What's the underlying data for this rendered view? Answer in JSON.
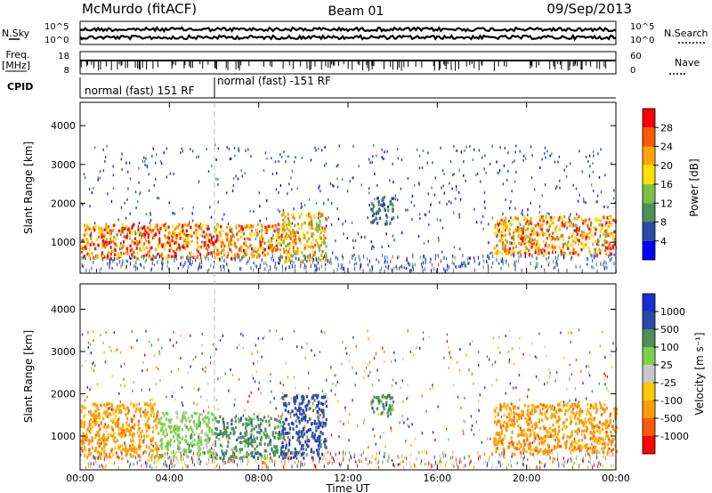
{
  "header": {
    "station": "McMurdo (fitACF)",
    "beam": "Beam 01",
    "date": "09/Sep/2013"
  },
  "left_labels": {
    "nsky": "N.Sky",
    "freq": "Freq.",
    "freq_unit": "[MHz]",
    "cpid": "CPID"
  },
  "right_labels": {
    "nsearch": "N.Search",
    "nave": "Nave"
  },
  "status_panels": {
    "nsky_ticks_left": [
      "10^5",
      "10^0"
    ],
    "nsearch_ticks_right": [
      "10^5",
      "10^0"
    ],
    "freq_ticks_left": [
      "18",
      "8"
    ],
    "nave_ticks_right": [
      "60",
      "0"
    ],
    "cpid_modes": [
      {
        "label": "normal (fast) 151 RF",
        "start_hour": 0,
        "end_hour": 6
      },
      {
        "label": "normal (fast) -151 RF",
        "start_hour": 6,
        "end_hour": 24
      }
    ]
  },
  "x_axis": {
    "label": "Time UT",
    "ticks": [
      "00:00",
      "04:00",
      "08:00",
      "12:00",
      "16:00",
      "20:00",
      "00:00"
    ],
    "range_hours": [
      0,
      24
    ]
  },
  "colors": {
    "power": [
      "#0000ff",
      "#2a4aa6",
      "#4f8f5a",
      "#7bc043",
      "#ffe000",
      "#ffa500",
      "#ff5a00",
      "#ff0000"
    ],
    "velocity": [
      "#ff0000",
      "#ff5a00",
      "#ff9d00",
      "#ffc800",
      "#c8c8c8",
      "#7bd24a",
      "#4f8f5a",
      "#2a4aa6",
      "#1a2fcf"
    ]
  },
  "chart_data": [
    {
      "type": "heatmap",
      "panel": "power",
      "xlabel": "Time UT",
      "ylabel": "Slant Range [km]",
      "xlim": [
        0,
        24
      ],
      "ylim": [
        200,
        4600
      ],
      "y_ticks": [
        "1000",
        "2000",
        "3000",
        "4000"
      ],
      "colorbar_label": "Power [dB]",
      "colorbar_ticks": [
        "4",
        "8",
        "12",
        "16",
        "20",
        "24",
        "28"
      ],
      "colorbar_range": [
        0,
        32
      ],
      "regions": [
        {
          "t_start": 0.0,
          "t_end": 6.0,
          "r_low": 600,
          "r_high": 1500,
          "peak_db": 30
        },
        {
          "t_start": 6.0,
          "t_end": 9.0,
          "r_low": 600,
          "r_high": 1500,
          "peak_db": 28
        },
        {
          "t_start": 9.0,
          "t_end": 11.0,
          "r_low": 500,
          "r_high": 1800,
          "peak_db": 24
        },
        {
          "t_start": 13.0,
          "t_end": 14.0,
          "r_low": 1500,
          "r_high": 2200,
          "peak_db": 10
        },
        {
          "t_start": 18.5,
          "t_end": 24.0,
          "r_low": 700,
          "r_high": 1700,
          "peak_db": 28
        }
      ]
    },
    {
      "type": "heatmap",
      "panel": "velocity",
      "xlabel": "Time UT",
      "ylabel": "Slant Range [km]",
      "xlim": [
        0,
        24
      ],
      "ylim": [
        200,
        4600
      ],
      "y_ticks": [
        "1000",
        "2000",
        "3000",
        "4000"
      ],
      "colorbar_label": "Velocity [m s⁻¹]",
      "colorbar_ticks": [
        "1000",
        "500",
        "100",
        "25",
        "-25",
        "-100",
        "-500",
        "-1000"
      ],
      "regions": [
        {
          "t_start": 0.0,
          "t_end": 3.5,
          "r_low": 500,
          "r_high": 1800,
          "velocity": -300
        },
        {
          "t_start": 3.5,
          "t_end": 6.0,
          "r_low": 500,
          "r_high": 1600,
          "velocity": 80
        },
        {
          "t_start": 6.0,
          "t_end": 9.0,
          "r_low": 500,
          "r_high": 1500,
          "velocity": 200
        },
        {
          "t_start": 9.0,
          "t_end": 11.0,
          "r_low": 500,
          "r_high": 2000,
          "velocity": 700
        },
        {
          "t_start": 13.0,
          "t_end": 14.0,
          "r_low": 1500,
          "r_high": 2000,
          "velocity": 200
        },
        {
          "t_start": 18.5,
          "t_end": 24.0,
          "r_low": 600,
          "r_high": 1800,
          "velocity": -200
        }
      ]
    }
  ]
}
